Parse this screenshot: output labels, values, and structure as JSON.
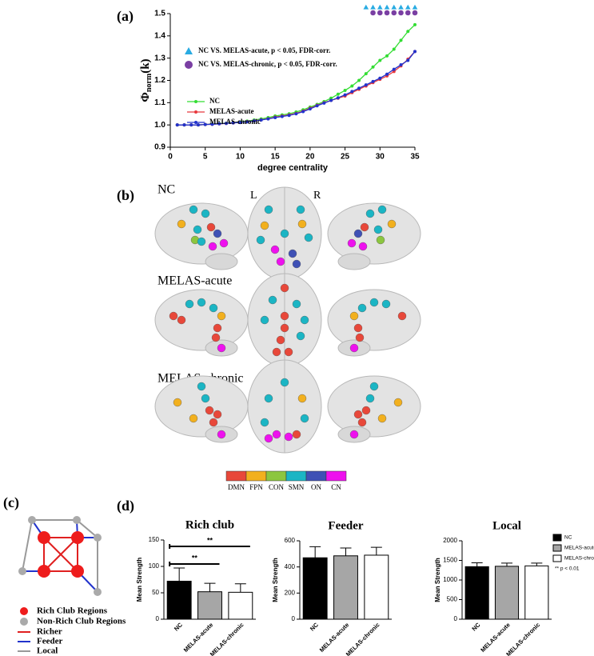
{
  "chart_data": [
    {
      "type": "line",
      "panel_label": "(a)",
      "ylabel": "Φ",
      "ylabel_sub": "norm",
      "ylabel_suffix": "(k)",
      "xlabel": "degree centrality",
      "x": [
        1,
        2,
        3,
        4,
        5,
        6,
        7,
        8,
        9,
        10,
        11,
        12,
        13,
        14,
        15,
        16,
        17,
        18,
        19,
        20,
        21,
        22,
        23,
        24,
        25,
        26,
        27,
        28,
        29,
        30,
        31,
        32,
        33,
        34,
        35
      ],
      "xlim": [
        0,
        35
      ],
      "xticks": [
        0,
        5,
        10,
        15,
        20,
        25,
        30,
        35
      ],
      "ylim": [
        0.9,
        1.5
      ],
      "yticks": [
        0.9,
        {
          "value": 1.0,
          "label": "1.0"
        },
        1.1,
        1.2,
        1.3,
        1.4,
        1.5
      ],
      "series": [
        {
          "name": "NC",
          "color": "#33dd33",
          "values": [
            1.0,
            1.0,
            1.0,
            1.0,
            1.002,
            1.004,
            1.006,
            1.008,
            1.01,
            1.013,
            1.017,
            1.022,
            1.027,
            1.033,
            1.04,
            1.045,
            1.05,
            1.058,
            1.068,
            1.08,
            1.092,
            1.105,
            1.12,
            1.138,
            1.155,
            1.175,
            1.2,
            1.23,
            1.26,
            1.29,
            1.31,
            1.34,
            1.38,
            1.42,
            1.45
          ]
        },
        {
          "name": "MELAS-acute",
          "color": "#e8383d",
          "values": [
            1.0,
            1.0,
            1.0,
            1.0,
            1.002,
            1.003,
            1.005,
            1.007,
            1.009,
            1.011,
            1.015,
            1.019,
            1.023,
            1.028,
            1.035,
            1.04,
            1.045,
            1.052,
            1.062,
            1.075,
            1.088,
            1.1,
            1.11,
            1.12,
            1.13,
            1.145,
            1.16,
            1.175,
            1.19,
            1.205,
            1.22,
            1.24,
            1.265,
            1.295,
            1.33
          ]
        },
        {
          "name": "MELAS-chronic",
          "color": "#2233cc",
          "values": [
            1.0,
            1.0,
            1.0,
            1.0,
            1.002,
            1.003,
            1.005,
            1.007,
            1.009,
            1.011,
            1.014,
            1.018,
            1.022,
            1.027,
            1.033,
            1.038,
            1.043,
            1.05,
            1.06,
            1.072,
            1.086,
            1.098,
            1.11,
            1.122,
            1.135,
            1.15,
            1.165,
            1.18,
            1.195,
            1.21,
            1.228,
            1.25,
            1.27,
            1.29,
            1.33
          ]
        }
      ],
      "markers": [
        {
          "name": "NC VS. MELAS-acute,  p < 0.05, FDR-corr.",
          "shape": "triangle",
          "color": "#29abe2",
          "x": [
            28,
            29,
            30,
            31,
            32,
            33,
            34,
            35
          ]
        },
        {
          "name": "NC VS. MELAS-chronic,  p < 0.05, FDR-corr.",
          "shape": "circle",
          "color": "#7a3fa3",
          "x": [
            29,
            30,
            31,
            32,
            33,
            34,
            35
          ]
        }
      ]
    },
    {
      "type": "bar",
      "panel_label": "(d)",
      "title": "Rich club",
      "ylabel": "Mean Strength",
      "categories": [
        "NC",
        "MELAS-acute",
        "MELAS-chronic"
      ],
      "colors": [
        "#000000",
        "#a6a6a6",
        "#ffffff"
      ],
      "values": [
        72,
        52,
        51
      ],
      "errors": [
        25,
        16,
        16
      ],
      "ylim": [
        0,
        150
      ],
      "yticks": [
        0,
        50,
        100,
        150
      ],
      "significance": [
        "**",
        "**"
      ]
    },
    {
      "type": "bar",
      "title": "Feeder",
      "ylabel": "Mean Strength",
      "categories": [
        "NC",
        "MELAS-acute",
        "MELAS-chronic"
      ],
      "colors": [
        "#000000",
        "#a6a6a6",
        "#ffffff"
      ],
      "values": [
        470,
        485,
        490
      ],
      "errors": [
        85,
        60,
        60
      ],
      "ylim": [
        0,
        600
      ],
      "yticks": [
        0,
        200,
        400,
        600
      ]
    },
    {
      "type": "bar",
      "title": "Local",
      "ylabel": "Mean Strength",
      "categories": [
        "NC",
        "MELAS-acute",
        "MELAS-chronic"
      ],
      "colors": [
        "#000000",
        "#a6a6a6",
        "#ffffff"
      ],
      "values": [
        1340,
        1350,
        1360
      ],
      "errors": [
        100,
        80,
        70
      ],
      "ylim": [
        0,
        2000
      ],
      "yticks": [
        0,
        500,
        1000,
        1500,
        2000
      ]
    }
  ],
  "bar_legend": {
    "items": [
      {
        "name": "NC",
        "color": "#000000"
      },
      {
        "name": "MELAS-acute",
        "color": "#a6a6a6"
      },
      {
        "name": "MELAS-chronic",
        "color": "#ffffff"
      }
    ],
    "note": "** p < 0.01"
  },
  "brain_panel": {
    "label": "(b)",
    "groups": [
      "NC",
      "MELAS-acute",
      "MELAS-chronic"
    ],
    "hemispheres": [
      "L",
      "R"
    ],
    "networks": [
      {
        "name": "DMN",
        "color": "#e8483a"
      },
      {
        "name": "FPN",
        "color": "#f2b01e"
      },
      {
        "name": "CON",
        "color": "#8cc63f"
      },
      {
        "name": "SMN",
        "color": "#1bb5c4"
      },
      {
        "name": "ON",
        "color": "#3f51b5"
      },
      {
        "name": "CN",
        "color": "#ee11ee"
      }
    ]
  },
  "diagram": {
    "label": "(c)",
    "legend": [
      "Rich Club Regions",
      "Non-Rich Club Regions",
      "Richer",
      "Feeder",
      "Local"
    ]
  }
}
